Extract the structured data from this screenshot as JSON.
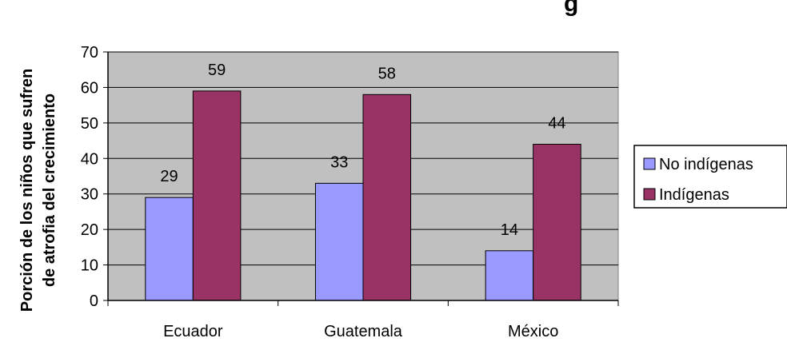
{
  "chart_data": {
    "type": "bar",
    "title_fragment": "g",
    "ylabel_line1": "Porción de los niños que sufren",
    "ylabel_line2": "de atrofia del crecimiento",
    "xlabel": "",
    "categories": [
      "Ecuador",
      "Guatemala",
      "México"
    ],
    "series": [
      {
        "name": "No indígenas",
        "values": [
          29,
          33,
          14
        ],
        "color": "#9999ff"
      },
      {
        "name": "Indígenas",
        "values": [
          59,
          58,
          44
        ],
        "color": "#993366"
      }
    ],
    "ylim": [
      0,
      70
    ],
    "yticks": [
      0,
      10,
      20,
      30,
      40,
      50,
      60,
      70
    ],
    "grid": true,
    "plot_background": "#c0c0c0",
    "legend_position": "right"
  }
}
